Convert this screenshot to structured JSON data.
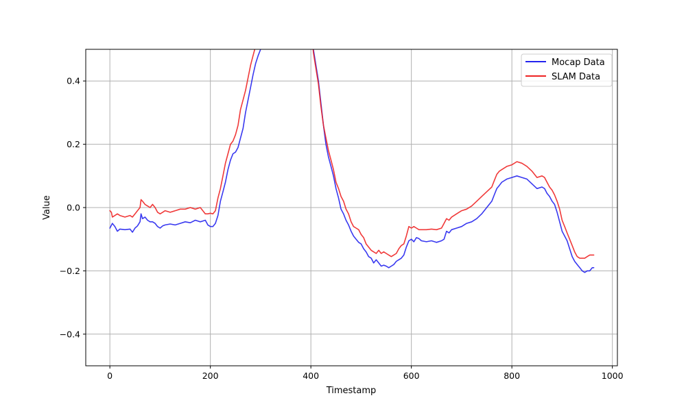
{
  "chart_data": {
    "type": "line",
    "title": "",
    "xlabel": "Timestamp",
    "ylabel": "Value",
    "xlim": [
      -48,
      1010
    ],
    "ylim": [
      -0.5,
      0.5
    ],
    "x_ticks": [
      0,
      200,
      400,
      600,
      800,
      1000
    ],
    "y_ticks": [
      -0.4,
      -0.2,
      0.0,
      0.2,
      0.4
    ],
    "x_tick_labels": [
      "0",
      "200",
      "400",
      "600",
      "800",
      "1000"
    ],
    "y_tick_labels": [
      "−0.4",
      "−0.2",
      "0.0",
      "0.2",
      "0.4"
    ],
    "grid": true,
    "legend_position": "top-right",
    "series": [
      {
        "name": "Mocap Data",
        "color": "#2222ee",
        "points": [
          [
            0,
            -0.065
          ],
          [
            5,
            -0.05
          ],
          [
            10,
            -0.06
          ],
          [
            15,
            -0.075
          ],
          [
            20,
            -0.068
          ],
          [
            30,
            -0.07
          ],
          [
            40,
            -0.068
          ],
          [
            45,
            -0.078
          ],
          [
            50,
            -0.065
          ],
          [
            55,
            -0.058
          ],
          [
            60,
            -0.045
          ],
          [
            62,
            -0.02
          ],
          [
            65,
            -0.035
          ],
          [
            70,
            -0.03
          ],
          [
            75,
            -0.04
          ],
          [
            80,
            -0.045
          ],
          [
            85,
            -0.045
          ],
          [
            90,
            -0.05
          ],
          [
            95,
            -0.06
          ],
          [
            100,
            -0.065
          ],
          [
            105,
            -0.058
          ],
          [
            110,
            -0.055
          ],
          [
            120,
            -0.052
          ],
          [
            130,
            -0.055
          ],
          [
            140,
            -0.05
          ],
          [
            150,
            -0.045
          ],
          [
            160,
            -0.048
          ],
          [
            170,
            -0.04
          ],
          [
            180,
            -0.045
          ],
          [
            190,
            -0.04
          ],
          [
            195,
            -0.055
          ],
          [
            200,
            -0.06
          ],
          [
            205,
            -0.06
          ],
          [
            210,
            -0.05
          ],
          [
            215,
            -0.025
          ],
          [
            220,
            0.02
          ],
          [
            225,
            0.05
          ],
          [
            230,
            0.08
          ],
          [
            235,
            0.12
          ],
          [
            240,
            0.15
          ],
          [
            245,
            0.17
          ],
          [
            250,
            0.175
          ],
          [
            255,
            0.19
          ],
          [
            260,
            0.22
          ],
          [
            265,
            0.25
          ],
          [
            270,
            0.3
          ],
          [
            275,
            0.34
          ],
          [
            280,
            0.38
          ],
          [
            285,
            0.42
          ],
          [
            290,
            0.455
          ],
          [
            295,
            0.48
          ],
          [
            300,
            0.5
          ],
          [
            303,
            0.52
          ],
          [
            403,
            0.52
          ],
          [
            405,
            0.5
          ],
          [
            410,
            0.45
          ],
          [
            415,
            0.4
          ],
          [
            420,
            0.33
          ],
          [
            425,
            0.26
          ],
          [
            430,
            0.2
          ],
          [
            435,
            0.16
          ],
          [
            440,
            0.13
          ],
          [
            445,
            0.1
          ],
          [
            450,
            0.06
          ],
          [
            455,
            0.03
          ],
          [
            460,
            -0.005
          ],
          [
            465,
            -0.02
          ],
          [
            470,
            -0.04
          ],
          [
            475,
            -0.055
          ],
          [
            480,
            -0.075
          ],
          [
            485,
            -0.09
          ],
          [
            490,
            -0.1
          ],
          [
            495,
            -0.11
          ],
          [
            500,
            -0.115
          ],
          [
            505,
            -0.13
          ],
          [
            510,
            -0.14
          ],
          [
            515,
            -0.155
          ],
          [
            520,
            -0.16
          ],
          [
            525,
            -0.175
          ],
          [
            530,
            -0.165
          ],
          [
            535,
            -0.175
          ],
          [
            540,
            -0.185
          ],
          [
            545,
            -0.182
          ],
          [
            550,
            -0.185
          ],
          [
            555,
            -0.19
          ],
          [
            560,
            -0.185
          ],
          [
            565,
            -0.18
          ],
          [
            570,
            -0.17
          ],
          [
            575,
            -0.165
          ],
          [
            580,
            -0.16
          ],
          [
            585,
            -0.15
          ],
          [
            590,
            -0.125
          ],
          [
            595,
            -0.105
          ],
          [
            600,
            -0.1
          ],
          [
            605,
            -0.108
          ],
          [
            610,
            -0.095
          ],
          [
            615,
            -0.098
          ],
          [
            620,
            -0.105
          ],
          [
            630,
            -0.108
          ],
          [
            640,
            -0.105
          ],
          [
            650,
            -0.11
          ],
          [
            660,
            -0.105
          ],
          [
            665,
            -0.1
          ],
          [
            670,
            -0.075
          ],
          [
            675,
            -0.08
          ],
          [
            680,
            -0.07
          ],
          [
            690,
            -0.065
          ],
          [
            700,
            -0.06
          ],
          [
            710,
            -0.05
          ],
          [
            720,
            -0.045
          ],
          [
            730,
            -0.035
          ],
          [
            740,
            -0.02
          ],
          [
            750,
            0.0
          ],
          [
            760,
            0.02
          ],
          [
            765,
            0.04
          ],
          [
            770,
            0.06
          ],
          [
            775,
            0.07
          ],
          [
            780,
            0.08
          ],
          [
            790,
            0.09
          ],
          [
            800,
            0.095
          ],
          [
            810,
            0.1
          ],
          [
            820,
            0.095
          ],
          [
            830,
            0.09
          ],
          [
            840,
            0.075
          ],
          [
            850,
            0.06
          ],
          [
            860,
            0.065
          ],
          [
            865,
            0.06
          ],
          [
            870,
            0.045
          ],
          [
            875,
            0.035
          ],
          [
            880,
            0.02
          ],
          [
            885,
            0.01
          ],
          [
            890,
            -0.015
          ],
          [
            895,
            -0.045
          ],
          [
            900,
            -0.075
          ],
          [
            905,
            -0.09
          ],
          [
            910,
            -0.105
          ],
          [
            915,
            -0.13
          ],
          [
            920,
            -0.155
          ],
          [
            925,
            -0.17
          ],
          [
            930,
            -0.18
          ],
          [
            935,
            -0.19
          ],
          [
            940,
            -0.2
          ],
          [
            945,
            -0.205
          ],
          [
            950,
            -0.2
          ],
          [
            955,
            -0.2
          ],
          [
            960,
            -0.19
          ],
          [
            963,
            -0.19
          ]
        ]
      },
      {
        "name": "SLAM Data",
        "color": "#ee2222",
        "points": [
          [
            0,
            -0.01
          ],
          [
            3,
            -0.015
          ],
          [
            5,
            -0.03
          ],
          [
            10,
            -0.025
          ],
          [
            15,
            -0.02
          ],
          [
            20,
            -0.025
          ],
          [
            30,
            -0.03
          ],
          [
            40,
            -0.025
          ],
          [
            45,
            -0.03
          ],
          [
            50,
            -0.02
          ],
          [
            55,
            -0.01
          ],
          [
            60,
            0.0
          ],
          [
            62,
            0.025
          ],
          [
            65,
            0.02
          ],
          [
            70,
            0.01
          ],
          [
            75,
            0.005
          ],
          [
            80,
            0.0
          ],
          [
            85,
            0.01
          ],
          [
            90,
            0.0
          ],
          [
            95,
            -0.015
          ],
          [
            100,
            -0.02
          ],
          [
            105,
            -0.015
          ],
          [
            110,
            -0.01
          ],
          [
            120,
            -0.015
          ],
          [
            130,
            -0.01
          ],
          [
            140,
            -0.005
          ],
          [
            150,
            -0.005
          ],
          [
            160,
            0.0
          ],
          [
            170,
            -0.005
          ],
          [
            180,
            0.0
          ],
          [
            185,
            -0.01
          ],
          [
            190,
            -0.02
          ],
          [
            195,
            -0.02
          ],
          [
            200,
            -0.018
          ],
          [
            205,
            -0.02
          ],
          [
            210,
            -0.01
          ],
          [
            215,
            0.03
          ],
          [
            220,
            0.06
          ],
          [
            225,
            0.1
          ],
          [
            230,
            0.14
          ],
          [
            235,
            0.17
          ],
          [
            240,
            0.2
          ],
          [
            245,
            0.21
          ],
          [
            250,
            0.23
          ],
          [
            255,
            0.26
          ],
          [
            260,
            0.31
          ],
          [
            265,
            0.34
          ],
          [
            270,
            0.37
          ],
          [
            275,
            0.41
          ],
          [
            280,
            0.45
          ],
          [
            285,
            0.48
          ],
          [
            290,
            0.51
          ],
          [
            293,
            0.53
          ],
          [
            403,
            0.53
          ],
          [
            405,
            0.49
          ],
          [
            410,
            0.44
          ],
          [
            415,
            0.39
          ],
          [
            420,
            0.32
          ],
          [
            425,
            0.26
          ],
          [
            430,
            0.22
          ],
          [
            435,
            0.18
          ],
          [
            440,
            0.15
          ],
          [
            445,
            0.12
          ],
          [
            450,
            0.08
          ],
          [
            455,
            0.06
          ],
          [
            460,
            0.035
          ],
          [
            465,
            0.02
          ],
          [
            470,
            -0.005
          ],
          [
            475,
            -0.02
          ],
          [
            480,
            -0.045
          ],
          [
            485,
            -0.06
          ],
          [
            490,
            -0.065
          ],
          [
            495,
            -0.07
          ],
          [
            500,
            -0.085
          ],
          [
            505,
            -0.095
          ],
          [
            510,
            -0.115
          ],
          [
            515,
            -0.125
          ],
          [
            520,
            -0.135
          ],
          [
            525,
            -0.14
          ],
          [
            530,
            -0.145
          ],
          [
            535,
            -0.135
          ],
          [
            540,
            -0.145
          ],
          [
            545,
            -0.14
          ],
          [
            550,
            -0.145
          ],
          [
            555,
            -0.15
          ],
          [
            560,
            -0.155
          ],
          [
            565,
            -0.15
          ],
          [
            570,
            -0.145
          ],
          [
            575,
            -0.13
          ],
          [
            580,
            -0.12
          ],
          [
            585,
            -0.115
          ],
          [
            590,
            -0.09
          ],
          [
            595,
            -0.06
          ],
          [
            600,
            -0.065
          ],
          [
            605,
            -0.06
          ],
          [
            610,
            -0.065
          ],
          [
            615,
            -0.07
          ],
          [
            620,
            -0.07
          ],
          [
            630,
            -0.07
          ],
          [
            640,
            -0.068
          ],
          [
            650,
            -0.07
          ],
          [
            660,
            -0.065
          ],
          [
            665,
            -0.05
          ],
          [
            670,
            -0.035
          ],
          [
            675,
            -0.04
          ],
          [
            680,
            -0.03
          ],
          [
            690,
            -0.02
          ],
          [
            700,
            -0.01
          ],
          [
            710,
            -0.005
          ],
          [
            720,
            0.005
          ],
          [
            730,
            0.02
          ],
          [
            740,
            0.035
          ],
          [
            750,
            0.05
          ],
          [
            760,
            0.065
          ],
          [
            765,
            0.085
          ],
          [
            770,
            0.105
          ],
          [
            775,
            0.115
          ],
          [
            780,
            0.12
          ],
          [
            790,
            0.13
          ],
          [
            800,
            0.135
          ],
          [
            810,
            0.145
          ],
          [
            820,
            0.14
          ],
          [
            830,
            0.13
          ],
          [
            840,
            0.115
          ],
          [
            850,
            0.095
          ],
          [
            860,
            0.1
          ],
          [
            865,
            0.095
          ],
          [
            870,
            0.08
          ],
          [
            875,
            0.065
          ],
          [
            880,
            0.055
          ],
          [
            885,
            0.04
          ],
          [
            890,
            0.02
          ],
          [
            895,
            -0.005
          ],
          [
            900,
            -0.04
          ],
          [
            905,
            -0.06
          ],
          [
            910,
            -0.08
          ],
          [
            915,
            -0.1
          ],
          [
            920,
            -0.12
          ],
          [
            925,
            -0.14
          ],
          [
            930,
            -0.155
          ],
          [
            935,
            -0.16
          ],
          [
            940,
            -0.16
          ],
          [
            945,
            -0.16
          ],
          [
            950,
            -0.155
          ],
          [
            955,
            -0.15
          ],
          [
            960,
            -0.15
          ],
          [
            963,
            -0.15
          ]
        ]
      }
    ]
  }
}
